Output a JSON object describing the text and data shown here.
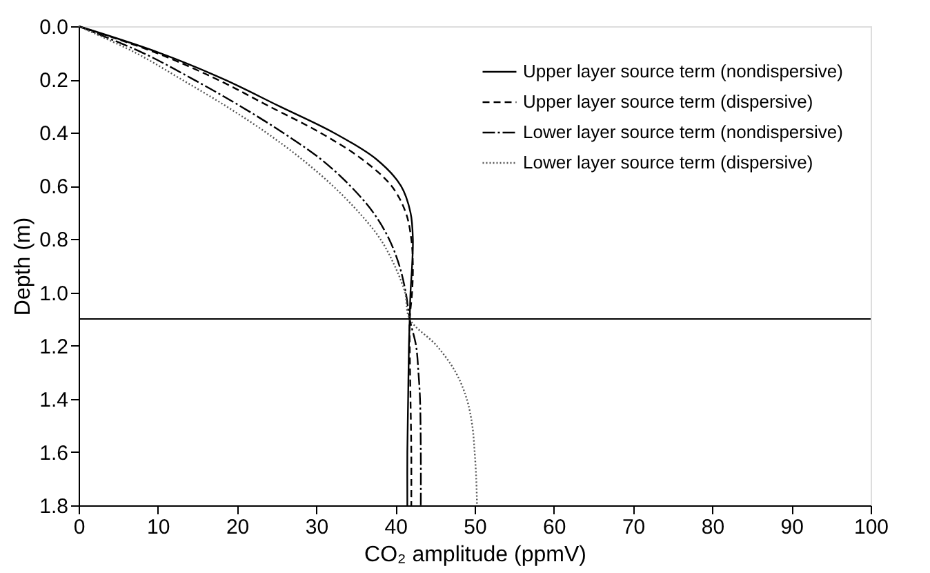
{
  "chart_data": {
    "type": "line",
    "xlabel": "CO₂ amplitude (ppmV)",
    "ylabel": "Depth (m)",
    "xlim": [
      0,
      100
    ],
    "xticks": [
      0,
      10,
      20,
      30,
      40,
      50,
      60,
      70,
      80,
      90,
      100
    ],
    "ylim": [
      1.8,
      0
    ],
    "yticks": [
      {
        "value": 0,
        "label": "0.0"
      },
      {
        "value": 0.2,
        "label": "0.2"
      },
      {
        "value": 0.4,
        "label": "0.4"
      },
      {
        "value": 0.6,
        "label": "0.6"
      },
      {
        "value": 0.8,
        "label": "0.8"
      },
      {
        "value": 1.0,
        "label": "1.0"
      },
      {
        "value": 1.2,
        "label": "1.2"
      },
      {
        "value": 1.4,
        "label": "1.4"
      },
      {
        "value": 1.6,
        "label": "1.6"
      },
      {
        "value": 1.8,
        "label": "1.8"
      }
    ],
    "grid": false,
    "legend": "top right",
    "marker": "none",
    "ref_lines": [
      {
        "axis": "y",
        "value": 1.1,
        "color": "#000000",
        "line_style": "solid"
      }
    ],
    "series": [
      {
        "name": "Upper layer source term (nondispersive)",
        "color": "#000000",
        "line_style": "solid",
        "x": [
          0,
          10.2,
          18.4,
          25.3,
          32.2,
          37.6,
          40.7,
          41.9,
          42.2,
          42.1,
          41.9,
          41.8,
          41.7,
          41.6,
          41.5,
          41.5
        ],
        "values": [
          0,
          0.1,
          0.2,
          0.3,
          0.4,
          0.5,
          0.6,
          0.7,
          0.8,
          0.9,
          1.0,
          1.1,
          1.2,
          1.4,
          1.6,
          1.8
        ]
      },
      {
        "name": "Upper layer source term (dispersive)",
        "color": "#000000",
        "line_style": "dashed",
        "x": [
          0,
          9.8,
          17.5,
          24,
          30.5,
          35.8,
          39.5,
          41.3,
          42,
          42.2,
          42.1,
          41.8,
          41.8,
          41.9,
          42,
          42
        ],
        "values": [
          0,
          0.1,
          0.2,
          0.3,
          0.4,
          0.5,
          0.6,
          0.7,
          0.8,
          0.9,
          1.0,
          1.1,
          1.2,
          1.4,
          1.6,
          1.8
        ]
      },
      {
        "name": "Lower layer source term (nondispersive)",
        "color": "#000000",
        "line_style": "dashdot",
        "x": [
          0,
          8.1,
          14.5,
          20.4,
          25.8,
          30.6,
          34.3,
          37.2,
          39.2,
          40.5,
          41.3,
          41.8,
          42.6,
          42.9,
          43.1,
          43.2,
          43.2
        ],
        "values": [
          0,
          0.1,
          0.2,
          0.3,
          0.4,
          0.5,
          0.6,
          0.7,
          0.8,
          0.9,
          1.0,
          1.1,
          1.2,
          1.3,
          1.4,
          1.6,
          1.8
        ]
      },
      {
        "name": "Lower layer source term (dispersive)",
        "color": "#555555",
        "line_style": "dotted",
        "x": [
          0,
          7.2,
          13,
          18.6,
          23.7,
          28.2,
          32.1,
          35.4,
          38.1,
          39.9,
          41.2,
          41.8,
          45.2,
          47.6,
          49,
          49.7,
          50,
          50.2,
          50.3
        ],
        "values": [
          0,
          0.1,
          0.2,
          0.3,
          0.4,
          0.5,
          0.6,
          0.7,
          0.8,
          0.9,
          1.0,
          1.1,
          1.2,
          1.3,
          1.4,
          1.5,
          1.6,
          1.7,
          1.8
        ]
      }
    ]
  }
}
